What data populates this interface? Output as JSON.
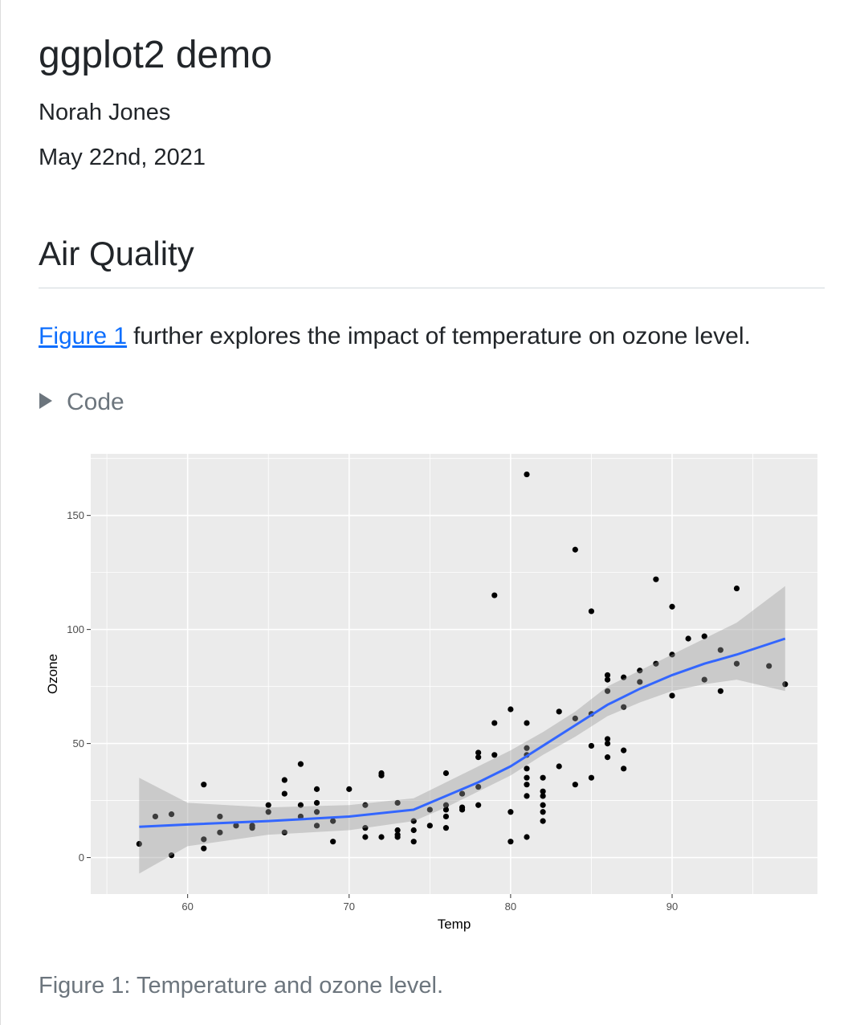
{
  "header": {
    "title": "ggplot2 demo",
    "author": "Norah Jones",
    "date": "May 22nd, 2021"
  },
  "section": {
    "heading": "Air Quality",
    "link": "Figure 1",
    "text": "further explores the impact of temperature on ozone level.",
    "code_toggle": "Code"
  },
  "caption": "Figure 1: Temperature and ozone level.",
  "chart_data": {
    "type": "scatter",
    "x_label": "Temp",
    "y_label": "Ozone",
    "color": "#000000",
    "grid": true,
    "xlim": [
      54,
      99
    ],
    "ylim": [
      -16,
      177
    ],
    "xticks": [
      60,
      70,
      80,
      90
    ],
    "yticks": [
      0,
      50,
      100,
      150
    ],
    "minor_xticks": [
      55,
      65,
      75,
      85,
      95
    ],
    "minor_yticks": [
      25,
      75,
      125,
      175
    ],
    "x": [
      57,
      58,
      59,
      59,
      61,
      61,
      61,
      62,
      62,
      63,
      64,
      64,
      65,
      65,
      66,
      66,
      66,
      67,
      67,
      67,
      68,
      68,
      68,
      68,
      69,
      69,
      70,
      71,
      71,
      71,
      72,
      72,
      72,
      73,
      73,
      73,
      73,
      74,
      74,
      74,
      75,
      75,
      76,
      76,
      76,
      76,
      76,
      77,
      77,
      77,
      78,
      78,
      78,
      78,
      79,
      79,
      79,
      80,
      80,
      80,
      81,
      81,
      81,
      81,
      81,
      81,
      81,
      81,
      81,
      82,
      82,
      82,
      82,
      82,
      82,
      83,
      83,
      84,
      84,
      84,
      85,
      85,
      85,
      85,
      86,
      86,
      86,
      86,
      86,
      86,
      87,
      87,
      87,
      87,
      88,
      88,
      89,
      89,
      90,
      90,
      90,
      91,
      92,
      92,
      93,
      93,
      94,
      94,
      96,
      97
    ],
    "values": [
      6,
      18,
      19,
      1,
      32,
      8,
      4,
      18,
      11,
      14,
      14,
      13,
      23,
      20,
      34,
      28,
      11,
      41,
      23,
      18,
      30,
      24,
      20,
      14,
      16,
      7,
      30,
      23,
      13,
      9,
      37,
      36,
      9,
      24,
      12,
      10,
      9,
      16,
      12,
      7,
      21,
      14,
      37,
      23,
      21,
      18,
      13,
      28,
      22,
      21,
      46,
      44,
      31,
      23,
      115,
      59,
      45,
      65,
      20,
      7,
      168,
      59,
      48,
      45,
      39,
      35,
      32,
      27,
      9,
      35,
      29,
      27,
      23,
      20,
      16,
      64,
      40,
      135,
      61,
      32,
      108,
      63,
      49,
      35,
      80,
      78,
      73,
      52,
      50,
      44,
      79,
      66,
      47,
      39,
      82,
      77,
      122,
      85,
      110,
      89,
      71,
      96,
      97,
      78,
      91,
      73,
      118,
      85,
      84,
      76
    ],
    "smooth": {
      "color": "#3366ff",
      "band_color": "#999999",
      "x": [
        57,
        60,
        65,
        70,
        74,
        76,
        78,
        80,
        82,
        84,
        86,
        88,
        90,
        92,
        94,
        97
      ],
      "values": [
        13.5,
        14.5,
        16,
        18,
        21,
        27,
        33,
        40,
        49,
        58,
        67,
        74,
        80,
        85,
        89,
        96
      ],
      "lower": [
        -7,
        5,
        10,
        12,
        16,
        22,
        29,
        36,
        45,
        53,
        62,
        68,
        73,
        76,
        78,
        73
      ],
      "upper": [
        35,
        24,
        22,
        23,
        26,
        33,
        40,
        47,
        55,
        64,
        75,
        82,
        89,
        96,
        103,
        119
      ]
    }
  }
}
